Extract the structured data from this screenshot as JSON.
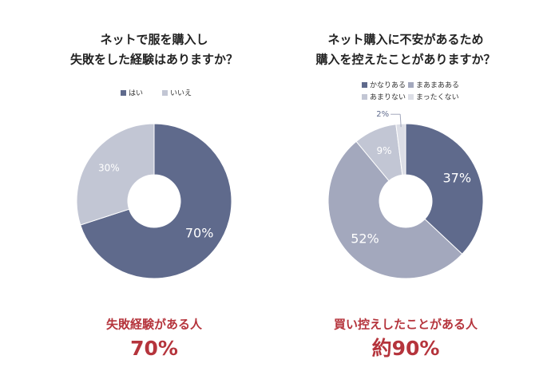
{
  "chart_data": [
    {
      "type": "donut",
      "title": [
        "ネットで服を購入し",
        "失敗をした経験はありますか？"
      ],
      "categories": [
        "はい",
        "いいえ"
      ],
      "values": [
        70,
        30
      ],
      "value_labels": [
        "70%",
        "30%"
      ],
      "colors": [
        "#5f6a8c",
        "#c2c6d4"
      ],
      "annotation": {
        "label": "失敗経験がある人",
        "value": "70%"
      }
    },
    {
      "type": "donut",
      "title": [
        "ネット購入に不安があるため",
        "購入を控えたことがありますか？"
      ],
      "categories": [
        "かなりある",
        "まあまあある",
        "あまりない",
        "まったくない"
      ],
      "values": [
        37,
        52,
        9,
        2
      ],
      "value_labels": [
        "37%",
        "52%",
        "9%",
        "2%"
      ],
      "colors": [
        "#5f6a8c",
        "#a3a8bd",
        "#c2c6d4",
        "#dcdee6"
      ],
      "annotation": {
        "label": "買い控えしたことがある人",
        "value": "約90%"
      }
    }
  ]
}
